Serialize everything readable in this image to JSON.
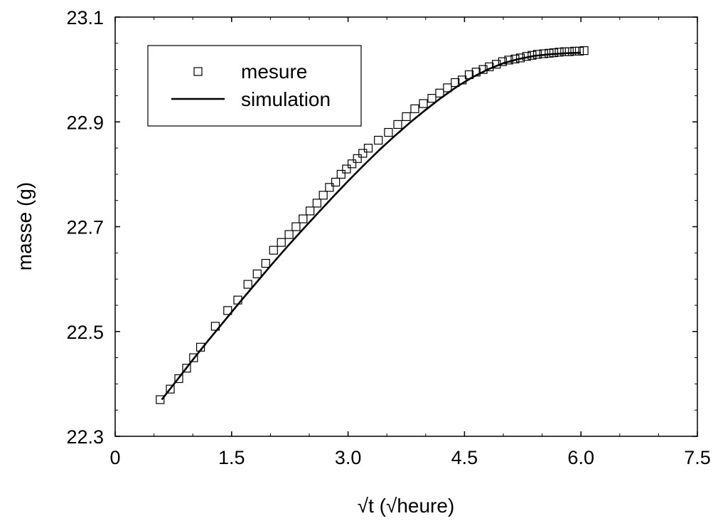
{
  "chart_data": {
    "type": "scatter",
    "title": "",
    "xlabel": "√t (√heure)",
    "ylabel": "masse (g)",
    "xlim": [
      0,
      7.5
    ],
    "ylim": [
      22.3,
      23.1
    ],
    "x_ticks": [
      0,
      1.5,
      3.0,
      4.5,
      6.0,
      7.5
    ],
    "x_tick_labels": [
      "0",
      "1.5",
      "3.0",
      "4.5",
      "6.0",
      "7.5"
    ],
    "y_ticks": [
      22.3,
      22.5,
      22.7,
      22.9,
      23.1
    ],
    "y_tick_labels": [
      "22.3",
      "22.5",
      "22.7",
      "22.9",
      "23.1"
    ],
    "grid": false,
    "legend_position": "top-left",
    "series": [
      {
        "name": "mesure",
        "marker": "square",
        "color": "#000000",
        "x": [
          0.58,
          0.71,
          0.82,
          0.92,
          1.01,
          1.1,
          1.29,
          1.45,
          1.58,
          1.71,
          1.83,
          1.94,
          2.04,
          2.14,
          2.24,
          2.33,
          2.42,
          2.51,
          2.6,
          2.68,
          2.76,
          2.84,
          2.91,
          2.98,
          3.05,
          3.12,
          3.19,
          3.26,
          3.39,
          3.52,
          3.64,
          3.75,
          3.86,
          3.97,
          4.08,
          4.18,
          4.28,
          4.38,
          4.47,
          4.56,
          4.65,
          4.74,
          4.82,
          4.91,
          4.99,
          5.07,
          5.15,
          5.22,
          5.3,
          5.37,
          5.44,
          5.52,
          5.59,
          5.65,
          5.72,
          5.79,
          5.85,
          5.92,
          5.98,
          6.04
        ],
        "y": [
          22.37,
          22.39,
          22.41,
          22.43,
          22.45,
          22.47,
          22.51,
          22.54,
          22.56,
          22.59,
          22.61,
          22.63,
          22.655,
          22.67,
          22.685,
          22.7,
          22.715,
          22.73,
          22.745,
          22.76,
          22.775,
          22.785,
          22.8,
          22.81,
          22.82,
          22.83,
          22.84,
          22.85,
          22.865,
          22.88,
          22.895,
          22.91,
          22.925,
          22.935,
          22.945,
          22.955,
          22.965,
          22.975,
          22.98,
          22.99,
          22.995,
          23.0,
          23.005,
          23.01,
          23.015,
          23.018,
          23.02,
          23.022,
          23.025,
          23.027,
          23.029,
          23.03,
          23.031,
          23.032,
          23.033,
          23.034,
          23.034,
          23.035,
          23.035,
          23.036
        ]
      },
      {
        "name": "simulation",
        "marker": "line",
        "color": "#000000",
        "x": [
          0.6,
          0.8,
          1.0,
          1.2,
          1.4,
          1.6,
          1.8,
          2.0,
          2.2,
          2.4,
          2.6,
          2.8,
          3.0,
          3.2,
          3.4,
          3.6,
          3.8,
          4.0,
          4.2,
          4.4,
          4.6,
          4.8,
          5.0,
          5.2,
          5.4,
          5.6,
          5.8,
          6.0
        ],
        "y": [
          22.37,
          22.408,
          22.446,
          22.483,
          22.519,
          22.555,
          22.59,
          22.625,
          22.659,
          22.692,
          22.724,
          22.756,
          22.787,
          22.817,
          22.846,
          22.873,
          22.899,
          22.923,
          22.946,
          22.967,
          22.985,
          23.0,
          23.012,
          23.02,
          23.026,
          23.029,
          23.031,
          23.032
        ]
      }
    ]
  }
}
